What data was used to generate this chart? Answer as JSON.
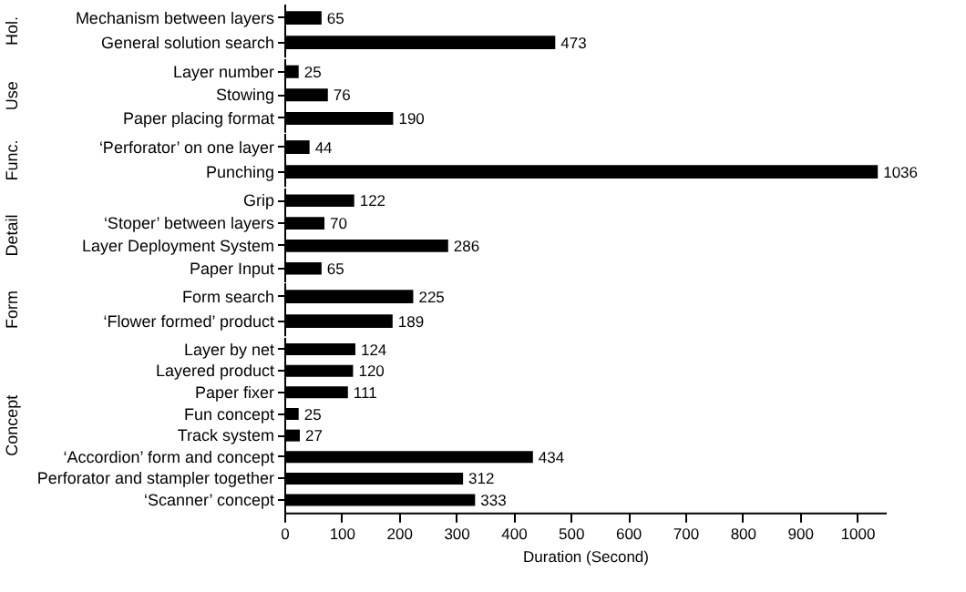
{
  "chart_data": [
    {
      "type": "bar",
      "orientation": "horizontal",
      "ylabel": "Hol.",
      "grid": false,
      "categories": [
        "Mechanism between layers",
        "General solution search"
      ],
      "values": [
        65,
        473
      ],
      "color": "#000000",
      "tick_labels": "y",
      "data_labels": true
    },
    {
      "type": "bar",
      "orientation": "horizontal",
      "ylabel": "Use",
      "grid": false,
      "categories": [
        "Layer number",
        "Stowing",
        "Paper placing format"
      ],
      "values": [
        25,
        76,
        190
      ],
      "color": "#000000",
      "tick_labels": "y",
      "data_labels": true
    },
    {
      "type": "bar",
      "orientation": "horizontal",
      "ylabel": "Func.",
      "grid": false,
      "categories": [
        "‘Perforator’ on one layer",
        "Punching"
      ],
      "values": [
        44,
        1036
      ],
      "color": "#000000",
      "tick_labels": "y",
      "data_labels": true
    },
    {
      "type": "bar",
      "orientation": "horizontal",
      "ylabel": "Detail",
      "grid": false,
      "categories": [
        "Grip",
        "‘Stoper’ between layers",
        "Layer Deployment System",
        "Paper Input"
      ],
      "values": [
        122,
        70,
        286,
        65
      ],
      "color": "#000000",
      "tick_labels": "y",
      "data_labels": true
    },
    {
      "type": "bar",
      "orientation": "horizontal",
      "ylabel": "Form",
      "grid": false,
      "categories": [
        "Form search",
        "‘Flower formed’ product"
      ],
      "values": [
        225,
        189
      ],
      "color": "#000000",
      "tick_labels": "y",
      "data_labels": true
    },
    {
      "type": "bar",
      "orientation": "horizontal",
      "ylabel": "Concept",
      "grid": false,
      "xlabel": "Duration (Second)",
      "categories": [
        "Layer by net",
        "Layered product",
        "Paper fixer",
        "Fun concept",
        "Track system",
        "‘Accordion’ form and concept",
        "Perforator and stampler together",
        "‘Scanner’ concept"
      ],
      "values": [
        124,
        120,
        111,
        25,
        27,
        434,
        312,
        333
      ],
      "color": "#000000",
      "xlim": [
        0,
        1050
      ],
      "xticks": [
        0,
        100,
        200,
        300,
        400,
        500,
        600,
        700,
        800,
        900,
        1000
      ],
      "data_labels": true
    }
  ]
}
